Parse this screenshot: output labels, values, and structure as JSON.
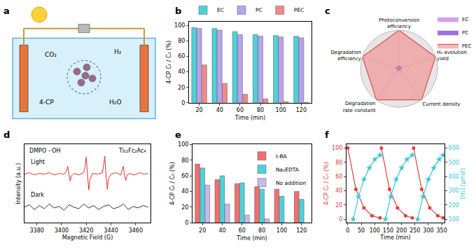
{
  "chart_data": [
    {
      "title": "a",
      "type": "diagram",
      "labels": [
        "CO₂",
        "H₂",
        "4-CP",
        "H₂O"
      ]
    },
    {
      "title": "b",
      "type": "bar",
      "categories": [
        "20",
        "40",
        "60",
        "80",
        "100",
        "120"
      ],
      "series": [
        {
          "name": "EC",
          "color": "#4fd1d9",
          "values": [
            97,
            96,
            92,
            88,
            87,
            86
          ]
        },
        {
          "name": "PC",
          "color": "#b9a3ee",
          "values": [
            96,
            94,
            88,
            86,
            85,
            84
          ]
        },
        {
          "name": "PEC",
          "color": "#f08a8a",
          "values": [
            49,
            25,
            11,
            5,
            1.5,
            0.5
          ]
        }
      ],
      "xlabel": "Time (min)",
      "ylabel": "4-CP Cₜ / C₀ (%)",
      "ylim": [
        0,
        105
      ],
      "yticks": [
        0,
        20,
        40,
        60,
        80,
        100
      ],
      "grid": false,
      "legend": "top"
    },
    {
      "title": "c",
      "type": "radar",
      "categories": [
        "Photoconversion\nefficiency",
        "H₂ evolution\nyield",
        "Current density",
        "Degradation\nrate constant",
        "Degradation\nefficiency"
      ],
      "series": [
        {
          "name": "EC",
          "color": "#d9a0e8",
          "values": [
            0.05,
            0.04,
            0.03,
            0.04,
            0.05
          ]
        },
        {
          "name": "PC",
          "color": "#a070e0",
          "values": [
            0.08,
            0.07,
            0.05,
            0.06,
            0.08
          ]
        },
        {
          "name": "PEC",
          "color": "#e05050",
          "values": [
            1,
            1,
            1,
            1,
            1
          ]
        }
      ],
      "ylim": [
        0,
        1
      ],
      "yticks": [],
      "legend": "top right"
    },
    {
      "title": "d",
      "type": "line",
      "series": [
        {
          "name": "Light",
          "color": "#e03030",
          "x": [
            3370,
            3374,
            3378,
            3382,
            3386,
            3390,
            3394,
            3398,
            3402,
            3404,
            3405,
            3406,
            3407,
            3408,
            3410,
            3414,
            3418,
            3419,
            3420,
            3421,
            3422,
            3423,
            3425,
            3429,
            3433,
            3434,
            3435,
            3436,
            3437,
            3438,
            3440,
            3444,
            3448,
            3449,
            3450,
            3451,
            3452,
            3453,
            3455,
            3459,
            3463,
            3467,
            3470
          ],
          "values": [
            0.62,
            0.64,
            0.61,
            0.63,
            0.62,
            0.64,
            0.61,
            0.63,
            0.62,
            0.66,
            0.72,
            0.62,
            0.53,
            0.6,
            0.63,
            0.61,
            0.64,
            0.72,
            0.84,
            0.62,
            0.42,
            0.55,
            0.63,
            0.62,
            0.64,
            0.73,
            0.85,
            0.6,
            0.43,
            0.56,
            0.62,
            0.64,
            0.61,
            0.67,
            0.72,
            0.6,
            0.54,
            0.61,
            0.63,
            0.61,
            0.64,
            0.62,
            0.63
          ]
        },
        {
          "name": "Dark",
          "color": "#333333",
          "x": [
            3370,
            3374,
            3378,
            3382,
            3386,
            3390,
            3394,
            3398,
            3402,
            3406,
            3410,
            3414,
            3418,
            3422,
            3426,
            3430,
            3434,
            3438,
            3442,
            3446,
            3450,
            3454,
            3458,
            3462,
            3466,
            3470
          ],
          "values": [
            0.2,
            0.23,
            0.17,
            0.22,
            0.18,
            0.24,
            0.19,
            0.21,
            0.16,
            0.23,
            0.2,
            0.18,
            0.24,
            0.19,
            0.22,
            0.17,
            0.21,
            0.23,
            0.18,
            0.2,
            0.24,
            0.17,
            0.21,
            0.19,
            0.22,
            0.2
          ]
        }
      ],
      "xlabel": "Magnetic Field (G)",
      "ylabel": "Intensity (a.u.)",
      "xlim": [
        3370,
        3472
      ],
      "xticks": [
        3380,
        3400,
        3420,
        3440,
        3460
      ],
      "ylim": [
        0,
        1
      ],
      "yticks": [],
      "tick_labels": "x",
      "annotations": [
        "DMPO -·OH",
        "Ti₁₂Fc₂Ac₄"
      ]
    },
    {
      "title": "e",
      "type": "bar",
      "categories": [
        "20",
        "40",
        "60",
        "80",
        "100",
        "120"
      ],
      "series": [
        {
          "name": "t-BA",
          "color": "#f07070",
          "values": [
            75,
            55,
            50,
            46,
            43,
            40
          ]
        },
        {
          "name": "Na₂EDTA",
          "color": "#4fd1d9",
          "values": [
            70,
            60,
            51,
            43,
            34,
            30
          ]
        },
        {
          "name": "No addition",
          "color": "#c9b8f0",
          "values": [
            48,
            24,
            10,
            5,
            0,
            0
          ]
        }
      ],
      "xlabel": "Time (min)",
      "ylabel": "4-CP Cₜ / C₀ (%)",
      "ylim": [
        0,
        100
      ],
      "yticks": [
        0,
        20,
        40,
        60,
        80,
        100
      ],
      "grid": false,
      "legend": "top right"
    },
    {
      "title": "f",
      "type": "line",
      "series": [
        {
          "color": "#e04040",
          "marker": "circle",
          "x": [
            0,
            30,
            60,
            90,
            120,
            null,
            125,
            155,
            185,
            215,
            240,
            null,
            245,
            275,
            305,
            335,
            355
          ],
          "values": [
            100,
            42,
            16,
            5,
            2,
            null,
            100,
            42,
            16,
            5,
            2,
            null,
            100,
            42,
            16,
            5,
            2
          ]
        },
        {
          "color": "#3cc8d0",
          "marker": "star",
          "axis": "y2",
          "x": [
            20,
            40,
            60,
            80,
            100,
            120,
            null,
            140,
            160,
            180,
            200,
            220,
            240,
            null,
            260,
            280,
            300,
            320,
            340,
            355
          ],
          "values": [
            100,
            260,
            380,
            460,
            520,
            550,
            null,
            100,
            260,
            380,
            460,
            520,
            550,
            null,
            100,
            260,
            380,
            460,
            520,
            550
          ]
        }
      ],
      "xlabel": "Time (min)",
      "ylabel": "4-CP Cₜ / C₀ (%)",
      "y2label": "[H₂] (μmol)",
      "xlim": [
        -5,
        360
      ],
      "xticks": [
        0,
        50,
        100,
        150,
        200,
        250,
        300,
        350
      ],
      "ylim": [
        -5,
        105
      ],
      "yticks": [
        0,
        20,
        40,
        60,
        80,
        100
      ],
      "y2lim": [
        75,
        625
      ],
      "y2ticks": [
        100,
        200,
        300,
        400,
        500,
        600
      ]
    }
  ]
}
